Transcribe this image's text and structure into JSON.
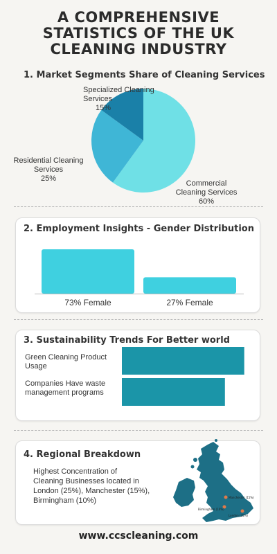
{
  "header": {
    "title_lines": [
      "A COMPREHENSIVE",
      "STATISTICS OF THE UK",
      "CLEANING INDUSTRY"
    ]
  },
  "colors": {
    "pie": [
      "#6fe0e6",
      "#3fb6d6",
      "#1a80a8"
    ],
    "bars": "#3fd0e0",
    "hbars": "#1b95a8",
    "map": "#1d6f86",
    "map_dot": "#e07a4a"
  },
  "chart_data": [
    {
      "type": "pie",
      "title": "1. Market Segments Share of Cleaning Services",
      "slices": [
        {
          "label": "Commercial Cleaning Services",
          "value": 60,
          "value_text": "60%"
        },
        {
          "label": "Residential Cleaning Services",
          "value": 25,
          "value_text": "25%"
        },
        {
          "label": "Specialized Cleaning Services",
          "value": 15,
          "value_text": "15%"
        }
      ]
    },
    {
      "type": "bar",
      "title": "2. Employment Insights  - Gender Distribution",
      "categories": [
        "73% Female",
        "27% Female"
      ],
      "values": [
        73,
        27
      ],
      "ylim": [
        0,
        100
      ]
    },
    {
      "type": "bar",
      "orientation": "horizontal",
      "title": "3. Sustainability Trends For Better world",
      "categories": [
        "Green Cleaning Product Usage",
        "Companies Have waste management programs"
      ],
      "values": [
        95,
        80
      ],
      "xlim": [
        0,
        100
      ]
    }
  ],
  "region": {
    "title": "4. Regional Breakdown",
    "lines": [
      "Highest Concentration of",
      "Cleaning Businesses located in",
      "London (25%), Manchester (15%),",
      "Birmingham (10%)"
    ],
    "cities": [
      {
        "name": "Manchester (15%)"
      },
      {
        "name": "Birmingham (10%)"
      },
      {
        "name": "London (25%)"
      }
    ]
  },
  "footer": {
    "url": "www.ccscleaning.com"
  }
}
